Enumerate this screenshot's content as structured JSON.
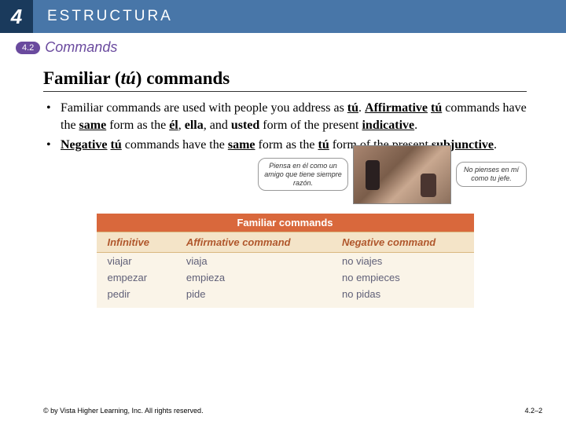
{
  "header": {
    "chapter": "4",
    "title": "ESTRUCTURA"
  },
  "subheader": {
    "badge": "4.2",
    "text": "Commands"
  },
  "main_title_pre": "Familiar (",
  "main_title_ital": "tú",
  "main_title_post": ") commands",
  "bullets": [
    {
      "segments": [
        {
          "t": "Familiar commands are used with people you address as "
        },
        {
          "t": "tú",
          "b": true,
          "u": true
        },
        {
          "t": ". "
        },
        {
          "t": "Affirmative",
          "b": true,
          "u": true
        },
        {
          "t": " "
        },
        {
          "t": "tú",
          "b": true,
          "u": true
        },
        {
          "t": " commands have the "
        },
        {
          "t": "same",
          "b": true,
          "u": true
        },
        {
          "t": " form as the "
        },
        {
          "t": "él",
          "b": true,
          "u": true
        },
        {
          "t": ", "
        },
        {
          "t": "ella",
          "b": true
        },
        {
          "t": ", and "
        },
        {
          "t": "usted",
          "b": true
        },
        {
          "t": " form of the present "
        },
        {
          "t": "indicative",
          "b": true,
          "u": true
        },
        {
          "t": "."
        }
      ]
    },
    {
      "segments": [
        {
          "t": "Negative",
          "b": true,
          "u": true
        },
        {
          "t": " "
        },
        {
          "t": "tú",
          "b": true,
          "u": true
        },
        {
          "t": " commands have the "
        },
        {
          "t": "same",
          "b": true,
          "u": true
        },
        {
          "t": " form as the "
        },
        {
          "t": "tú",
          "b": true,
          "u": true
        },
        {
          "t": " form of the present "
        },
        {
          "t": "subjunctive",
          "b": true,
          "u": true
        },
        {
          "t": "."
        }
      ]
    }
  ],
  "speech_left": "Piensa en él como un amigo que tiene siempre razón.",
  "speech_right": "No pienses en mí como tu jefe.",
  "table": {
    "title": "Familiar commands",
    "headers": [
      "Infinitive",
      "Affirmative command",
      "Negative command"
    ],
    "rows": [
      [
        "viajar",
        "viaja",
        "no viajes"
      ],
      [
        "empezar",
        "empieza",
        "no empieces"
      ],
      [
        "pedir",
        "pide",
        "no pidas"
      ]
    ],
    "title_bg": "#d9683c",
    "header_bg": "#f4e4c8",
    "header_color": "#b0572c",
    "cell_bg": "#faf4e8",
    "cell_color": "#606078"
  },
  "footer": {
    "left": "© by Vista Higher Learning, Inc. All rights reserved.",
    "right": "4.2–2"
  }
}
